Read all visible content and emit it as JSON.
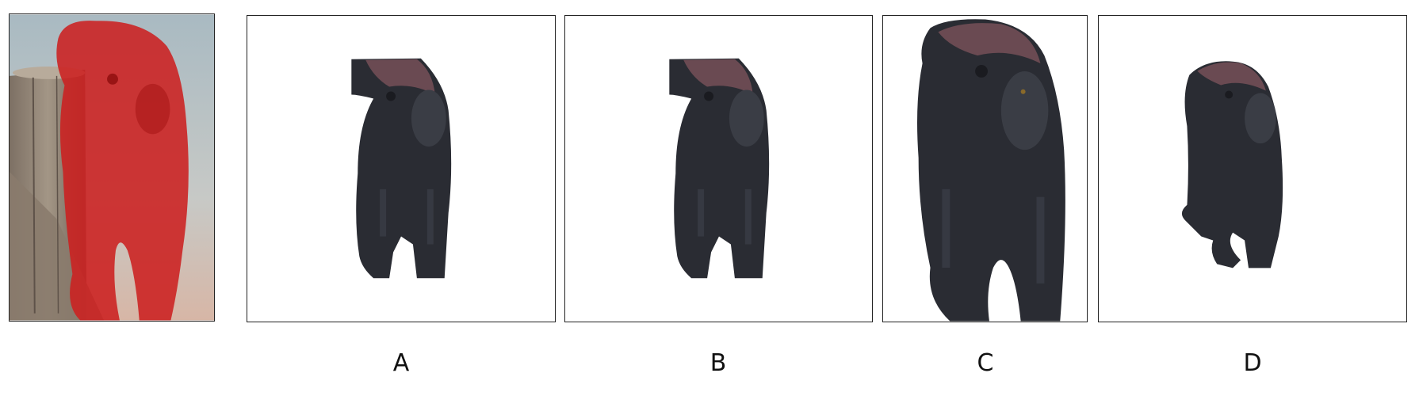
{
  "options": [
    {
      "id": "a",
      "label": "A"
    },
    {
      "id": "b",
      "label": "B"
    },
    {
      "id": "c",
      "label": "C"
    },
    {
      "id": "d",
      "label": "D"
    }
  ],
  "colors": {
    "mask_red": "#cc2020",
    "monkey_fur": "#2a2c33",
    "monkey_highlight": "#6a4a52",
    "background_sky": "#b9c6cc",
    "wood": "#9a8c7e"
  }
}
